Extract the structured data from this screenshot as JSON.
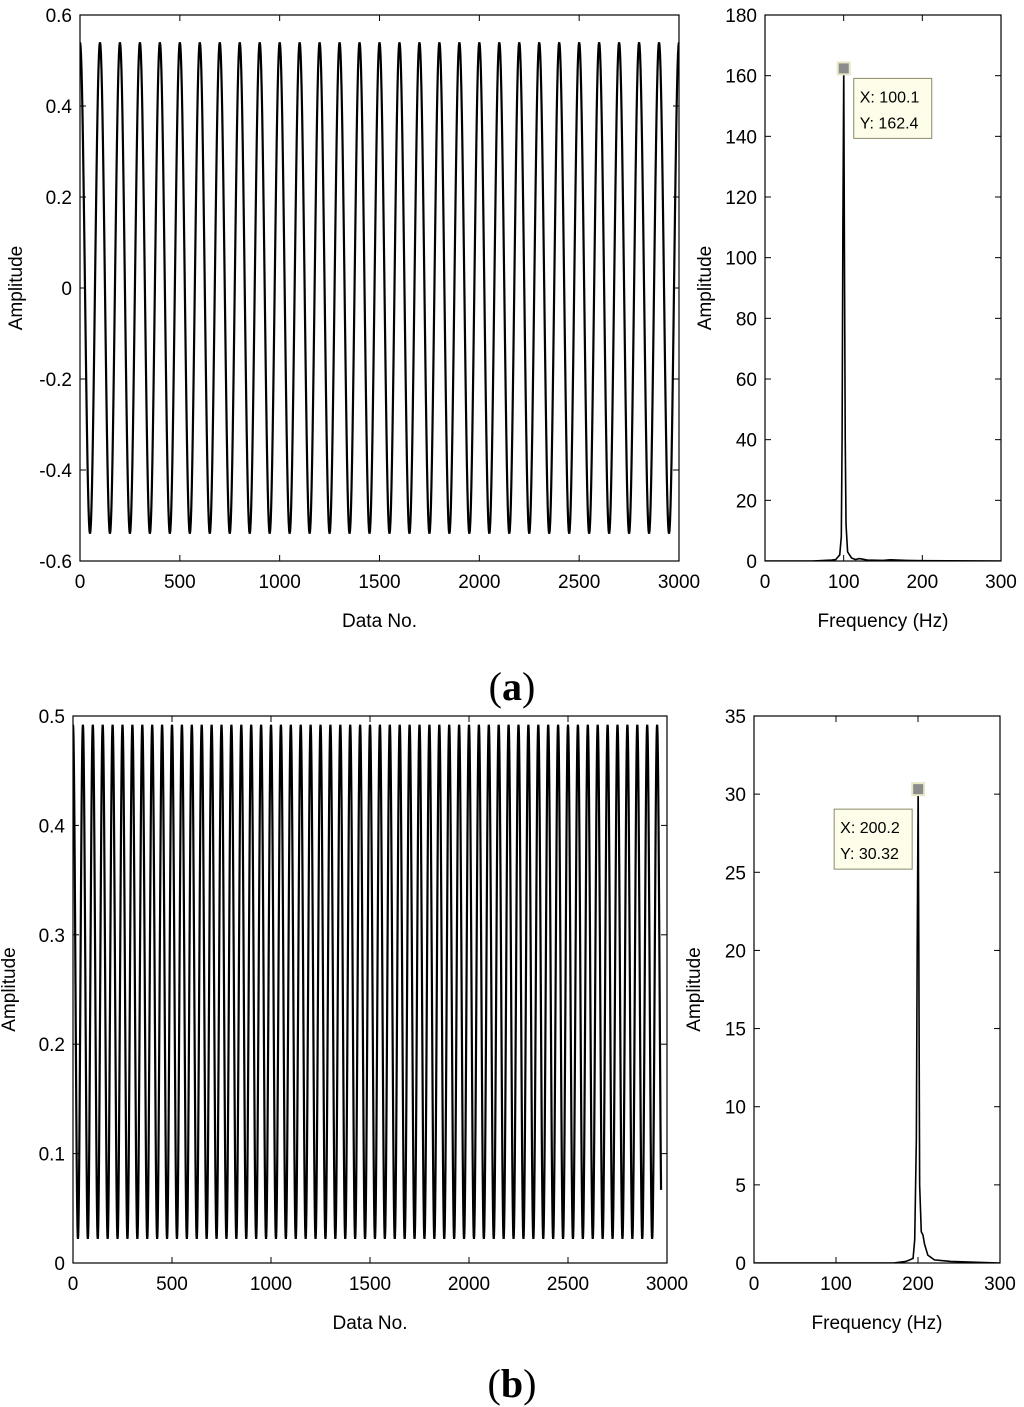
{
  "panels": [
    {
      "letter": "a",
      "open": "(",
      "close": ")"
    },
    {
      "letter": "b",
      "open": "(",
      "close": ")"
    }
  ],
  "chart_data": [
    {
      "id": "a-time",
      "type": "line",
      "xlabel": "Data No.",
      "ylabel": "Amplitude",
      "xlim": [
        0,
        3000
      ],
      "ylim": [
        -0.6,
        0.6
      ],
      "xticks": [
        0,
        500,
        1000,
        1500,
        2000,
        2500,
        3000
      ],
      "yticks": [
        -0.6,
        -0.4,
        -0.2,
        0,
        0.2,
        0.4,
        0.6
      ],
      "ytick_labels": [
        "-0.6",
        "-0.4",
        "-0.2",
        "0",
        "0.2",
        "0.4",
        "0.6"
      ],
      "series": [
        {
          "signal": "cosine",
          "offset": 0,
          "amplitude": 0.54,
          "period_samples": 100,
          "x_range": [
            0,
            3000
          ]
        }
      ],
      "grid": false
    },
    {
      "id": "a-freq",
      "type": "line",
      "xlabel": "Frequency (Hz)",
      "ylabel": "Amplitude",
      "xlim": [
        0,
        300
      ],
      "ylim": [
        0,
        180
      ],
      "xticks": [
        0,
        100,
        200,
        300
      ],
      "yticks": [
        0,
        20,
        40,
        60,
        80,
        100,
        120,
        140,
        160,
        180
      ],
      "ytick_labels": [
        "0",
        "20",
        "40",
        "60",
        "80",
        "100",
        "120",
        "140",
        "160",
        "180"
      ],
      "series": [
        {
          "points": [
            [
              0,
              0
            ],
            [
              60,
              0
            ],
            [
              85,
              0.3
            ],
            [
              90,
              0.5
            ],
            [
              95,
              2
            ],
            [
              97,
              8
            ],
            [
              98,
              40
            ],
            [
              99,
              110
            ],
            [
              100.1,
              162.4
            ],
            [
              101,
              100
            ],
            [
              102,
              40
            ],
            [
              103,
              12
            ],
            [
              105,
              3
            ],
            [
              110,
              1
            ],
            [
              115,
              0.5
            ],
            [
              120,
              0.8
            ],
            [
              130,
              0.3
            ],
            [
              150,
              0.2
            ],
            [
              160,
              0.4
            ],
            [
              180,
              0.2
            ],
            [
              200,
              0.1
            ],
            [
              300,
              0
            ]
          ]
        }
      ],
      "datatip": {
        "x": 100.1,
        "y": 162.4,
        "label_x": "X: 100.1",
        "label_y": "Y: 162.4"
      },
      "grid": false
    },
    {
      "id": "b-time",
      "type": "line",
      "xlabel": "Data No.",
      "ylabel": "Amplitude",
      "xlim": [
        0,
        3000
      ],
      "ylim": [
        0,
        0.5
      ],
      "xticks": [
        0,
        500,
        1000,
        1500,
        2000,
        2500,
        3000
      ],
      "yticks": [
        0,
        0.1,
        0.2,
        0.3,
        0.4,
        0.5
      ],
      "ytick_labels": [
        "0",
        "0.1",
        "0.2",
        "0.3",
        "0.4",
        "0.5"
      ],
      "series": [
        {
          "signal": "cosine",
          "offset": 0.257,
          "amplitude": 0.235,
          "period_samples": 50,
          "x_range": [
            0,
            2970
          ]
        }
      ],
      "grid": false
    },
    {
      "id": "b-freq",
      "type": "line",
      "xlabel": "Frequency (Hz)",
      "ylabel": "Amplitude",
      "xlim": [
        0,
        300
      ],
      "ylim": [
        0,
        35
      ],
      "xticks": [
        0,
        100,
        200,
        300
      ],
      "yticks": [
        0,
        5,
        10,
        15,
        20,
        25,
        30,
        35
      ],
      "ytick_labels": [
        "0",
        "5",
        "10",
        "15",
        "20",
        "25",
        "30",
        "35"
      ],
      "series": [
        {
          "points": [
            [
              0,
              0
            ],
            [
              170,
              0
            ],
            [
              185,
              0.1
            ],
            [
              190,
              0.2
            ],
            [
              194,
              0.3
            ],
            [
              196,
              1.5
            ],
            [
              198,
              8
            ],
            [
              199,
              20
            ],
            [
              200.2,
              30.32
            ],
            [
              201,
              20
            ],
            [
              202,
              5
            ],
            [
              204,
              2
            ],
            [
              206,
              1.8
            ],
            [
              208,
              1.2
            ],
            [
              212,
              0.5
            ],
            [
              220,
              0.2
            ],
            [
              240,
              0.1
            ],
            [
              300,
              0
            ]
          ]
        }
      ],
      "datatip": {
        "x": 200.2,
        "y": 30.32,
        "label_x": "X: 200.2",
        "label_y": "Y: 30.32"
      },
      "grid": false
    }
  ]
}
